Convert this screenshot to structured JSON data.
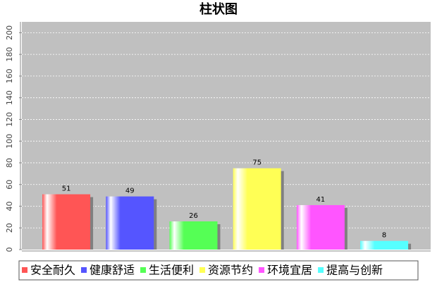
{
  "chart_data": {
    "type": "bar",
    "title": "柱状图",
    "categories": [
      "安全耐久",
      "健康舒适",
      "生活便利",
      "资源节约",
      "环境宜居",
      "提高与创新"
    ],
    "values": [
      51,
      49,
      26,
      75,
      41,
      8
    ],
    "colors": [
      "#ff5555",
      "#5555ff",
      "#55ff55",
      "#ffff55",
      "#ff55ff",
      "#55ffff"
    ],
    "ylim": [
      0,
      210
    ],
    "yticks": [
      0,
      20,
      40,
      60,
      80,
      100,
      120,
      140,
      160,
      180,
      200
    ],
    "grid": true,
    "legend": "bottom"
  }
}
